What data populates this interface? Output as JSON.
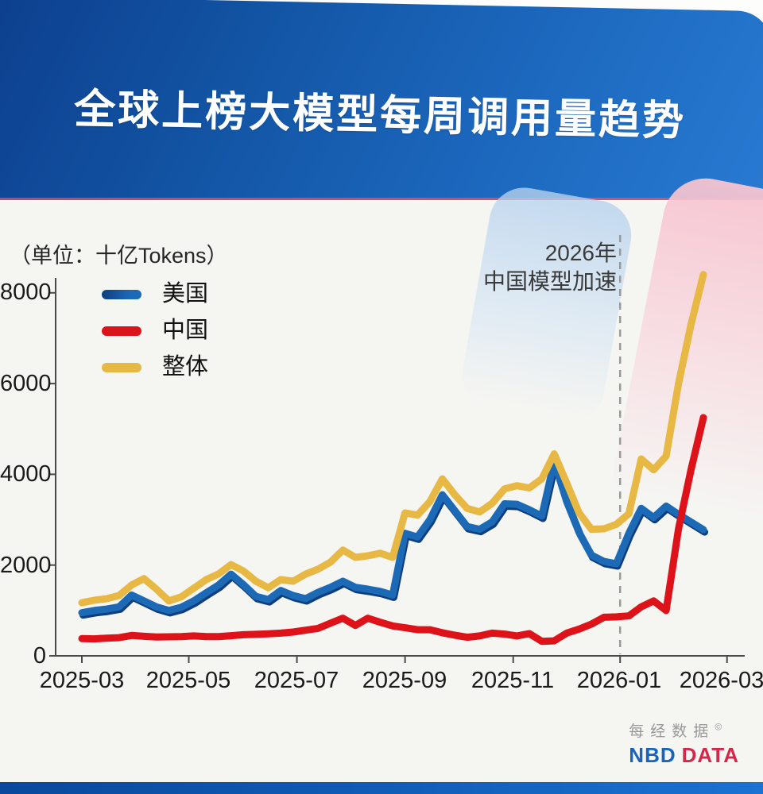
{
  "header": {
    "title": "全球上榜大模型每周调用量趋势"
  },
  "chart": {
    "unit_label": "（单位：十亿Tokens）",
    "annotation": {
      "line1": "2026年",
      "line2": "中国模型加速"
    },
    "y_ticks": [
      "8000",
      "6000",
      "4000",
      "2000",
      "0"
    ],
    "x_ticks": [
      "2025-03",
      "2025-05",
      "2025-07",
      "2025-09",
      "2025-11",
      "2026-01",
      "2026-03"
    ]
  },
  "chart_data": {
    "type": "line",
    "title": "全球上榜大模型每周调用量趋势",
    "unit": "十亿Tokens",
    "x_start": "2025-03",
    "x_interval": "weekly",
    "x_tick_labels": [
      "2025-03",
      "2025-05",
      "2025-07",
      "2025-09",
      "2025-11",
      "2026-01",
      "2026-03"
    ],
    "x_tick_weeks": [
      0,
      8.6,
      17.3,
      26,
      34.7,
      43.3,
      51.9
    ],
    "ylim": [
      0,
      8600
    ],
    "y_tick_values": [
      0,
      2000,
      4000,
      6000,
      8000
    ],
    "grid": false,
    "legend_position": "top-left-inside",
    "annotation_text": "2026年 中国模型加速",
    "annotation_line_week": 43.3,
    "series": [
      {
        "name": "美国",
        "color": "#1c69b6",
        "color_dark": "#0d3e7e",
        "values": [
          950,
          1000,
          1030,
          1080,
          1340,
          1210,
          1080,
          1000,
          1070,
          1210,
          1390,
          1560,
          1800,
          1570,
          1310,
          1240,
          1440,
          1330,
          1260,
          1400,
          1510,
          1645,
          1510,
          1470,
          1420,
          1340,
          2700,
          2620,
          3000,
          3550,
          3200,
          2850,
          2790,
          2950,
          3350,
          3340,
          3220,
          3080,
          4280,
          3400,
          2720,
          2220,
          2080,
          2030,
          2700,
          3250,
          3050,
          3300,
          3120,
          2950,
          2780
        ]
      },
      {
        "name": "中国",
        "color": "#de1219",
        "values": [
          380,
          375,
          390,
          400,
          450,
          430,
          415,
          420,
          425,
          440,
          425,
          425,
          445,
          465,
          475,
          485,
          500,
          525,
          565,
          605,
          720,
          830,
          670,
          830,
          740,
          660,
          620,
          575,
          575,
          510,
          455,
          410,
          440,
          500,
          480,
          440,
          490,
          320,
          330,
          500,
          590,
          700,
          850,
          860,
          880,
          1080,
          1210,
          1000,
          2800,
          4100,
          5250
        ]
      },
      {
        "name": "整体",
        "color": "#e7b844",
        "values": [
          1170,
          1225,
          1260,
          1330,
          1560,
          1700,
          1470,
          1210,
          1300,
          1490,
          1680,
          1805,
          2010,
          1870,
          1645,
          1500,
          1680,
          1645,
          1800,
          1910,
          2065,
          2330,
          2170,
          2205,
          2260,
          2170,
          3150,
          3100,
          3400,
          3900,
          3550,
          3250,
          3170,
          3360,
          3680,
          3750,
          3700,
          3900,
          4450,
          3810,
          3150,
          2790,
          2800,
          2900,
          3130,
          4340,
          4100,
          4400,
          6000,
          7300,
          8400
        ]
      }
    ]
  },
  "footer": {
    "brand_cn": "每经数据",
    "copyright_mark": "©",
    "brand_en_blue": "NBD",
    "brand_en_red": "DATA"
  }
}
